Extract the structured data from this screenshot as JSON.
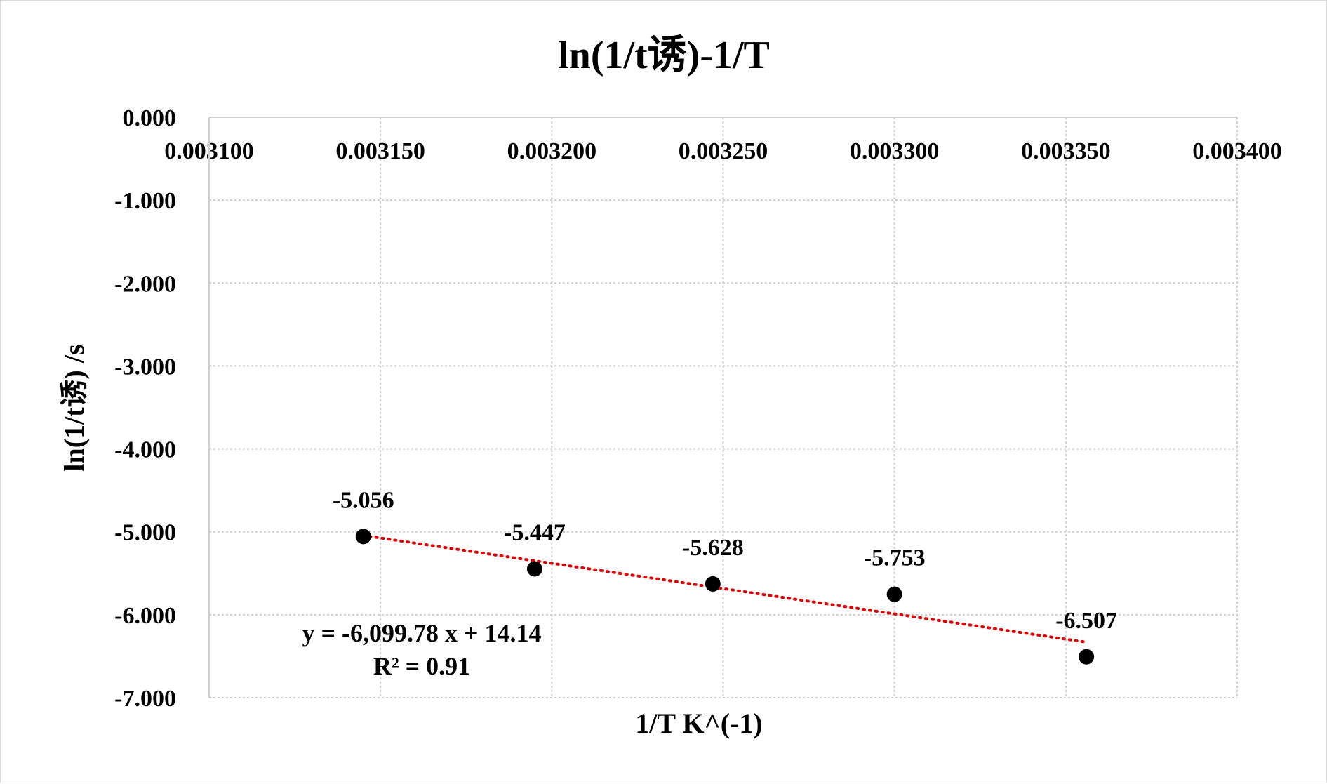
{
  "chart_data": {
    "type": "scatter",
    "title": "ln(1/t诱)-1/T",
    "xlabel": "1/T K^(-1)",
    "ylabel": "ln(1/t诱) /s",
    "xlim": [
      0.0031,
      0.0034
    ],
    "ylim": [
      -7.0,
      0.0
    ],
    "x_ticks": [
      "0.003100",
      "0.003150",
      "0.003200",
      "0.003250",
      "0.003300",
      "0.003350",
      "0.003400"
    ],
    "y_ticks": [
      "0.000",
      "-1.000",
      "-2.000",
      "-3.000",
      "-4.000",
      "-5.000",
      "-6.000",
      "-7.000"
    ],
    "x_tick_values": [
      0.0031,
      0.00315,
      0.0032,
      0.00325,
      0.0033,
      0.00335,
      0.0034
    ],
    "y_tick_values": [
      0,
      -1,
      -2,
      -3,
      -4,
      -5,
      -6,
      -7
    ],
    "grid": true,
    "x_axis_position": "top",
    "series": [
      {
        "x": [
          0.003145,
          0.003195,
          0.003247,
          0.0033,
          0.003356
        ],
        "y": [
          -5.056,
          -5.447,
          -5.628,
          -5.753,
          -6.507
        ],
        "labels": [
          "-5.056",
          "-5.447",
          "-5.628",
          "-5.753",
          "-6.507"
        ],
        "marker_color": "#000000"
      }
    ],
    "trendline": {
      "type": "linear",
      "slope": -6099.78,
      "intercept": 14.14,
      "x_range": [
        0.003145,
        0.003356
      ],
      "color": "#e00000",
      "style": "dotted",
      "equation": "y = -6,099.78 x + 14.14",
      "r_squared": "R² = 0.91"
    }
  }
}
